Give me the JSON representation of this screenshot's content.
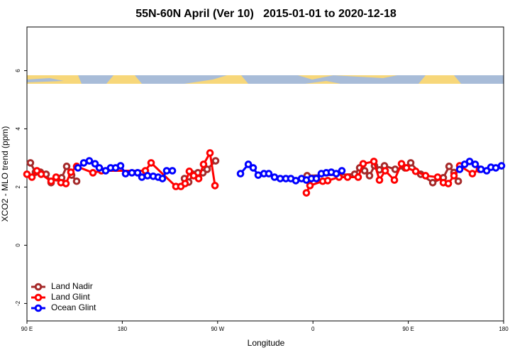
{
  "chart_data": {
    "type": "line",
    "title": "55N-60N April (Ver 10)   2015-01-01 to 2020-12-18",
    "xlabel": "Longitude",
    "ylabel": "XCO2 - MLO trend (ppm)",
    "xlim": [
      90,
      540
    ],
    "ylim": [
      -2.6,
      7.5
    ],
    "xticks": [
      {
        "value": 90,
        "label": "90 E"
      },
      {
        "value": 180,
        "label": "180"
      },
      {
        "value": 270,
        "label": "90 W"
      },
      {
        "value": 360,
        "label": "0"
      },
      {
        "value": 450,
        "label": "90 E"
      },
      {
        "value": 540,
        "label": "180"
      }
    ],
    "yticks": [
      -2,
      0,
      2,
      4,
      6
    ],
    "legend": "bottom-left",
    "series": [
      {
        "name": "Land Nadir",
        "color": "#a52a2a",
        "x": [
          93.3,
          98.0,
          102.7,
          108.1,
          112.8,
          118.1,
          122.8,
          127.5,
          132.2,
          136.9,
          null,
          238.7,
          242.7,
          246.7,
          251.4,
          256.1,
          260.1,
          268.1,
          null,
          354.5,
          399.4,
          404.1,
          408.8,
          413.4,
          418.1,
          422.8,
          427.5,
          437.6,
          446.9,
          452.3,
          461.7,
          473.1,
          483.1,
          488.5,
          493.1,
          497.2
        ],
        "values": [
          2.83,
          2.51,
          2.51,
          2.44,
          2.15,
          2.32,
          2.32,
          2.71,
          2.41,
          2.2,
          null,
          2.29,
          2.17,
          2.44,
          2.49,
          2.49,
          2.61,
          2.9,
          null,
          2.39,
          2.44,
          2.66,
          2.56,
          2.39,
          2.73,
          2.59,
          2.73,
          2.61,
          2.66,
          2.83,
          2.44,
          2.15,
          2.32,
          2.71,
          2.5,
          2.2
        ]
      },
      {
        "name": "Land Glint",
        "color": "#ff0000",
        "x": [
          90.0,
          94.7,
          99.4,
          103.4,
          112.8,
          117.5,
          122.1,
          126.8,
          131.5,
          136.9,
          152.3,
          160.3,
          201.8,
          207.2,
          230.6,
          235.3,
          239.3,
          243.3,
          247.4,
          252.1,
          256.7,
          262.8,
          267.5,
          null,
          353.8,
          357.2,
          369.2,
          373.9,
          384.6,
          392.7,
          402.7,
          407.4,
          417.5,
          422.8,
          428.2,
          436.9,
          443.6,
          448.3,
          457.0,
          466.3,
          477.7,
          483.1,
          487.8,
          493.1,
          498.5,
          510.5,
          517.2
        ],
        "values": [
          2.44,
          2.34,
          2.56,
          2.44,
          2.2,
          2.34,
          2.15,
          2.12,
          2.51,
          2.71,
          2.49,
          2.56,
          2.56,
          2.83,
          2.02,
          2.02,
          2.12,
          2.54,
          2.39,
          2.29,
          2.78,
          3.17,
          2.05,
          null,
          1.8,
          2.05,
          2.2,
          2.22,
          2.34,
          2.34,
          2.34,
          2.8,
          2.88,
          2.24,
          2.56,
          2.24,
          2.8,
          2.66,
          2.54,
          2.39,
          2.34,
          2.15,
          2.12,
          2.39,
          2.73,
          2.46,
          2.61
        ]
      },
      {
        "name": "Ocean Glint",
        "color": "#0000ff",
        "x": [
          138.2,
          143.6,
          148.9,
          154.3,
          158.3,
          164.3,
          169.0,
          173.7,
          178.4,
          183.1,
          189.1,
          194.5,
          198.5,
          203.8,
          209.2,
          213.9,
          217.9,
          221.9,
          227.3,
          null,
          291.6,
          299.0,
          303.6,
          308.3,
          313.7,
          318.3,
          323.7,
          329.1,
          334.4,
          339.1,
          343.8,
          349.2,
          353.8,
          358.5,
          363.2,
          367.9,
          372.6,
          377.3,
          382.0,
          387.3,
          null,
          498.5,
          503.2,
          507.9,
          513.2,
          518.6,
          524.0,
          528.0,
          532.6,
          538.0
        ],
        "values": [
          2.66,
          2.83,
          2.9,
          2.8,
          2.66,
          2.56,
          2.66,
          2.66,
          2.73,
          2.46,
          2.49,
          2.49,
          2.34,
          2.39,
          2.37,
          2.34,
          2.29,
          2.56,
          2.56,
          null,
          2.46,
          2.78,
          2.66,
          2.41,
          2.46,
          2.46,
          2.34,
          2.29,
          2.29,
          2.29,
          2.22,
          2.29,
          2.24,
          2.29,
          2.29,
          2.46,
          2.49,
          2.51,
          2.46,
          2.56,
          null,
          2.61,
          2.78,
          2.88,
          2.78,
          2.61,
          2.56,
          2.68,
          2.66,
          2.73
        ]
      }
    ]
  }
}
